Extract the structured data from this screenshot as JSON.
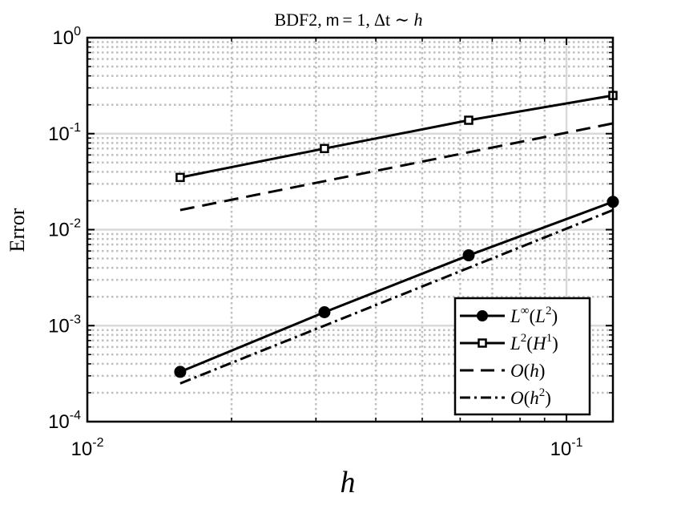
{
  "chart_data": {
    "type": "line",
    "title": {
      "prefix": "BDF2,",
      "m_label": "m",
      "equals_one": "= 1,",
      "dt": "Δt ∼ ",
      "h": "h"
    },
    "xlabel": "h",
    "ylabel": "Error",
    "xscale": "log",
    "yscale": "log",
    "xlim": [
      0.01,
      0.125
    ],
    "ylim": [
      0.0001,
      1
    ],
    "grid": true,
    "minor_grid": true,
    "legend_position": "bottom-right",
    "x_ticks": [
      {
        "value": 0.01,
        "base": "10",
        "exp": "-2"
      },
      {
        "value": 0.1,
        "base": "10",
        "exp": "-1"
      }
    ],
    "y_ticks": [
      {
        "value": 0.0001,
        "base": "10",
        "exp": "-4"
      },
      {
        "value": 0.001,
        "base": "10",
        "exp": "-3"
      },
      {
        "value": 0.01,
        "base": "10",
        "exp": "-2"
      },
      {
        "value": 0.1,
        "base": "10",
        "exp": "-1"
      },
      {
        "value": 1,
        "base": "10",
        "exp": "0"
      }
    ],
    "series": [
      {
        "name": "L^∞(L^2)",
        "legend": {
          "a": "L",
          "a_sup": "∞",
          "b": "(",
          "c": "L",
          "c_sup": "2",
          "d": ")"
        },
        "style": "solid",
        "marker": "filled-circle",
        "x": [
          0.015625,
          0.03125,
          0.0625,
          0.125
        ],
        "y": [
          0.00033,
          0.00138,
          0.0054,
          0.0195
        ]
      },
      {
        "name": "L^2(H^1)",
        "legend": {
          "a": "L",
          "a_sup": "2",
          "b": "(",
          "c": "H",
          "c_sup": "1",
          "d": ")"
        },
        "style": "solid",
        "marker": "open-square",
        "x": [
          0.015625,
          0.03125,
          0.0625,
          0.125
        ],
        "y": [
          0.035,
          0.07,
          0.138,
          0.25
        ]
      },
      {
        "name": "O(h)",
        "legend": {
          "a": "O",
          "a_sup": "",
          "b": "(",
          "c": "h",
          "c_sup": "",
          "d": ")"
        },
        "style": "dashed",
        "marker": "none",
        "x": [
          0.015625,
          0.125
        ],
        "y": [
          0.016,
          0.128
        ]
      },
      {
        "name": "O(h^2)",
        "legend": {
          "a": "O",
          "a_sup": "",
          "b": "(",
          "c": "h",
          "c_sup": "2",
          "d": ")"
        },
        "style": "dash-dot",
        "marker": "none",
        "x": [
          0.015625,
          0.125
        ],
        "y": [
          0.00025,
          0.016
        ]
      }
    ],
    "colors": {
      "line": "#000000",
      "grid_major": "#d9d9d9",
      "grid_minor": "#bfbfbf",
      "background": "#ffffff"
    }
  }
}
